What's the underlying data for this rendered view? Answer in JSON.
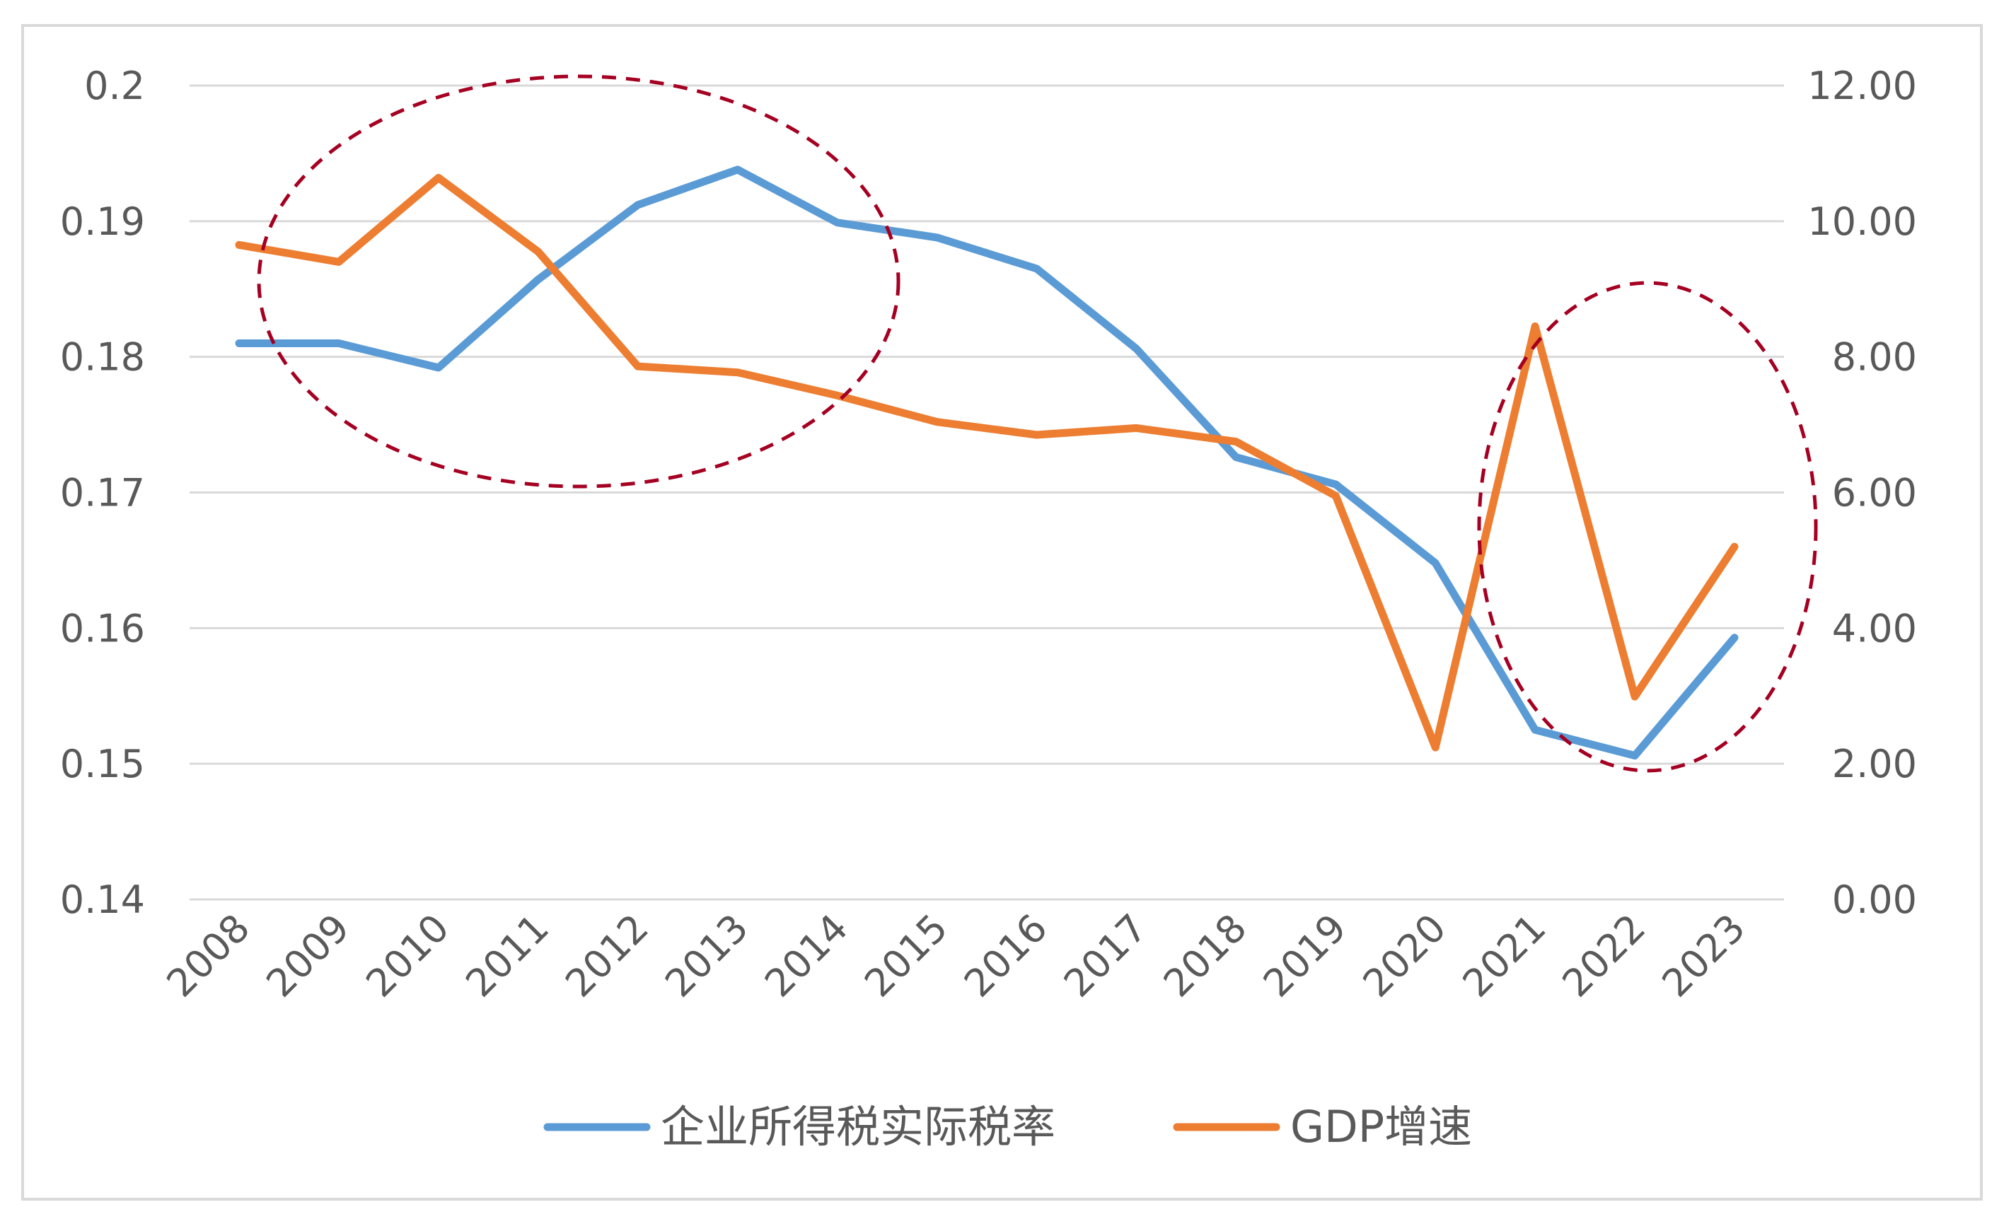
{
  "chart_data": {
    "type": "line",
    "title": "",
    "xlabel": "",
    "ylabel": "",
    "y2label": "",
    "x": [
      "2008",
      "2009",
      "2010",
      "2011",
      "2012",
      "2013",
      "2014",
      "2015",
      "2016",
      "2017",
      "2018",
      "2019",
      "2020",
      "2021",
      "2022",
      "2023"
    ],
    "ylim": [
      0.14,
      0.2
    ],
    "y_ticks": [
      "0.14",
      "0.15",
      "0.16",
      "0.17",
      "0.18",
      "0.19",
      "0.2"
    ],
    "y2lim": [
      0,
      12
    ],
    "y2_ticks": [
      "0.00",
      "2.00",
      "4.00",
      "6.00",
      "8.00",
      "10.00",
      "12.00"
    ],
    "grid": true,
    "legend_position": "bottom",
    "series": [
      {
        "name": "企业所得税实际税率",
        "axis": "left",
        "color": "#5b9bd5",
        "values": [
          0.181,
          0.181,
          0.1792,
          0.1857,
          0.1912,
          0.1938,
          0.1899,
          0.1888,
          0.1865,
          0.1806,
          0.1726,
          0.1706,
          0.1648,
          0.1525,
          0.1506,
          0.1593
        ]
      },
      {
        "name": "GDP增速",
        "axis": "right",
        "color": "#ed7d31",
        "values": [
          9.65,
          9.4,
          10.64,
          9.55,
          7.86,
          7.77,
          7.43,
          7.04,
          6.85,
          6.95,
          6.75,
          5.95,
          2.24,
          8.45,
          2.99,
          5.2
        ]
      }
    ],
    "annotations": [
      {
        "type": "dashed-ellipse",
        "color": "#a50021",
        "x_range": [
          "2008",
          "2014"
        ]
      },
      {
        "type": "dashed-ellipse",
        "color": "#a50021",
        "x_range": [
          "2020",
          "2023"
        ]
      }
    ]
  }
}
